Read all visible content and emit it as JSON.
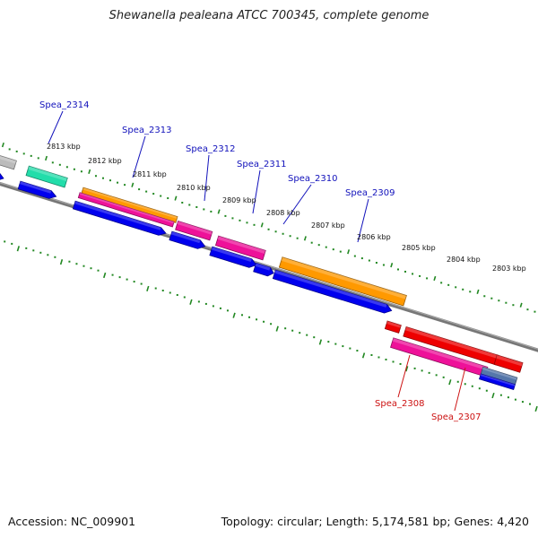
{
  "title": "Shewanella pealeana ATCC 700345, complete genome",
  "footer": {
    "accession": "Accession: NC_009901",
    "summary": "Topology: circular; Length: 5,174,581 bp; Genes: 4,420"
  },
  "colors": {
    "backbone": "#777777",
    "tick": "#228822",
    "forward_label": "#1111bb",
    "reverse_label": "#cc1111",
    "blue": "#0000ee",
    "magenta": "#ee1199",
    "orange": "#ff9900",
    "teal": "#22ddaa",
    "gray": "#bbbbbb",
    "red": "#ee0000",
    "steel": "#5577aa"
  },
  "kbp_ticks": [
    "2813 kbp",
    "2812 kbp",
    "2811 kbp",
    "2810 kbp",
    "2809 kbp",
    "2808 kbp",
    "2807 kbp",
    "2806 kbp",
    "2805 kbp",
    "2804 kbp",
    "2803 kbp"
  ],
  "gene_labels": [
    {
      "text": "Spea_2314",
      "strand": "forward"
    },
    {
      "text": "Spea_2313",
      "strand": "forward"
    },
    {
      "text": "Spea_2312",
      "strand": "forward"
    },
    {
      "text": "Spea_2311",
      "strand": "forward"
    },
    {
      "text": "Spea_2310",
      "strand": "forward"
    },
    {
      "text": "Spea_2309",
      "strand": "forward"
    },
    {
      "text": "Spea_2308",
      "strand": "reverse"
    },
    {
      "text": "Spea_2307",
      "strand": "reverse"
    }
  ]
}
